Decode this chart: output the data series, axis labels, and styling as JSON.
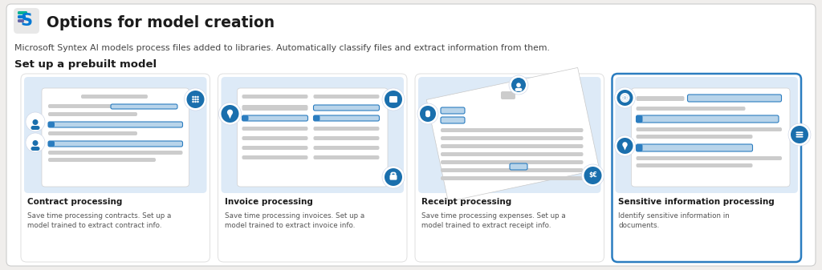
{
  "bg_color": "#f0eeec",
  "panel_bg": "#ffffff",
  "card_bg": "#ddeaf7",
  "title": "Options for model creation",
  "subtitle": "Microsoft Syntex AI models process files added to libraries. Automatically classify files and extract information from them.",
  "section_label": "Set up a prebuilt model",
  "cards": [
    {
      "name": "Contract processing",
      "desc": "Save time processing contracts. Set up a\nmodel trained to extract contract info."
    },
    {
      "name": "Invoice processing",
      "desc": "Save time processing invoices. Set up a\nmodel trained to extract invoice info."
    },
    {
      "name": "Receipt processing",
      "desc": "Save time processing expenses. Set up a\nmodel trained to extract receipt info."
    },
    {
      "name": "Sensitive information processing",
      "desc": "Identify sensitive information in\ndocuments."
    }
  ],
  "title_color": "#1b1b1b",
  "subtitle_color": "#444444",
  "section_color": "#1b1b1b",
  "card_name_color": "#1b1b1b",
  "card_desc_color": "#555555",
  "bar_gray": "#cccccc",
  "bar_gray2": "#d8d8d8",
  "bar_blue": "#2b7dc0",
  "bar_blue_light": "#b8d4ea",
  "bar_outline": "#2b7dc0",
  "icon_blue": "#1a6fad",
  "icon_bg": "#ffffff"
}
